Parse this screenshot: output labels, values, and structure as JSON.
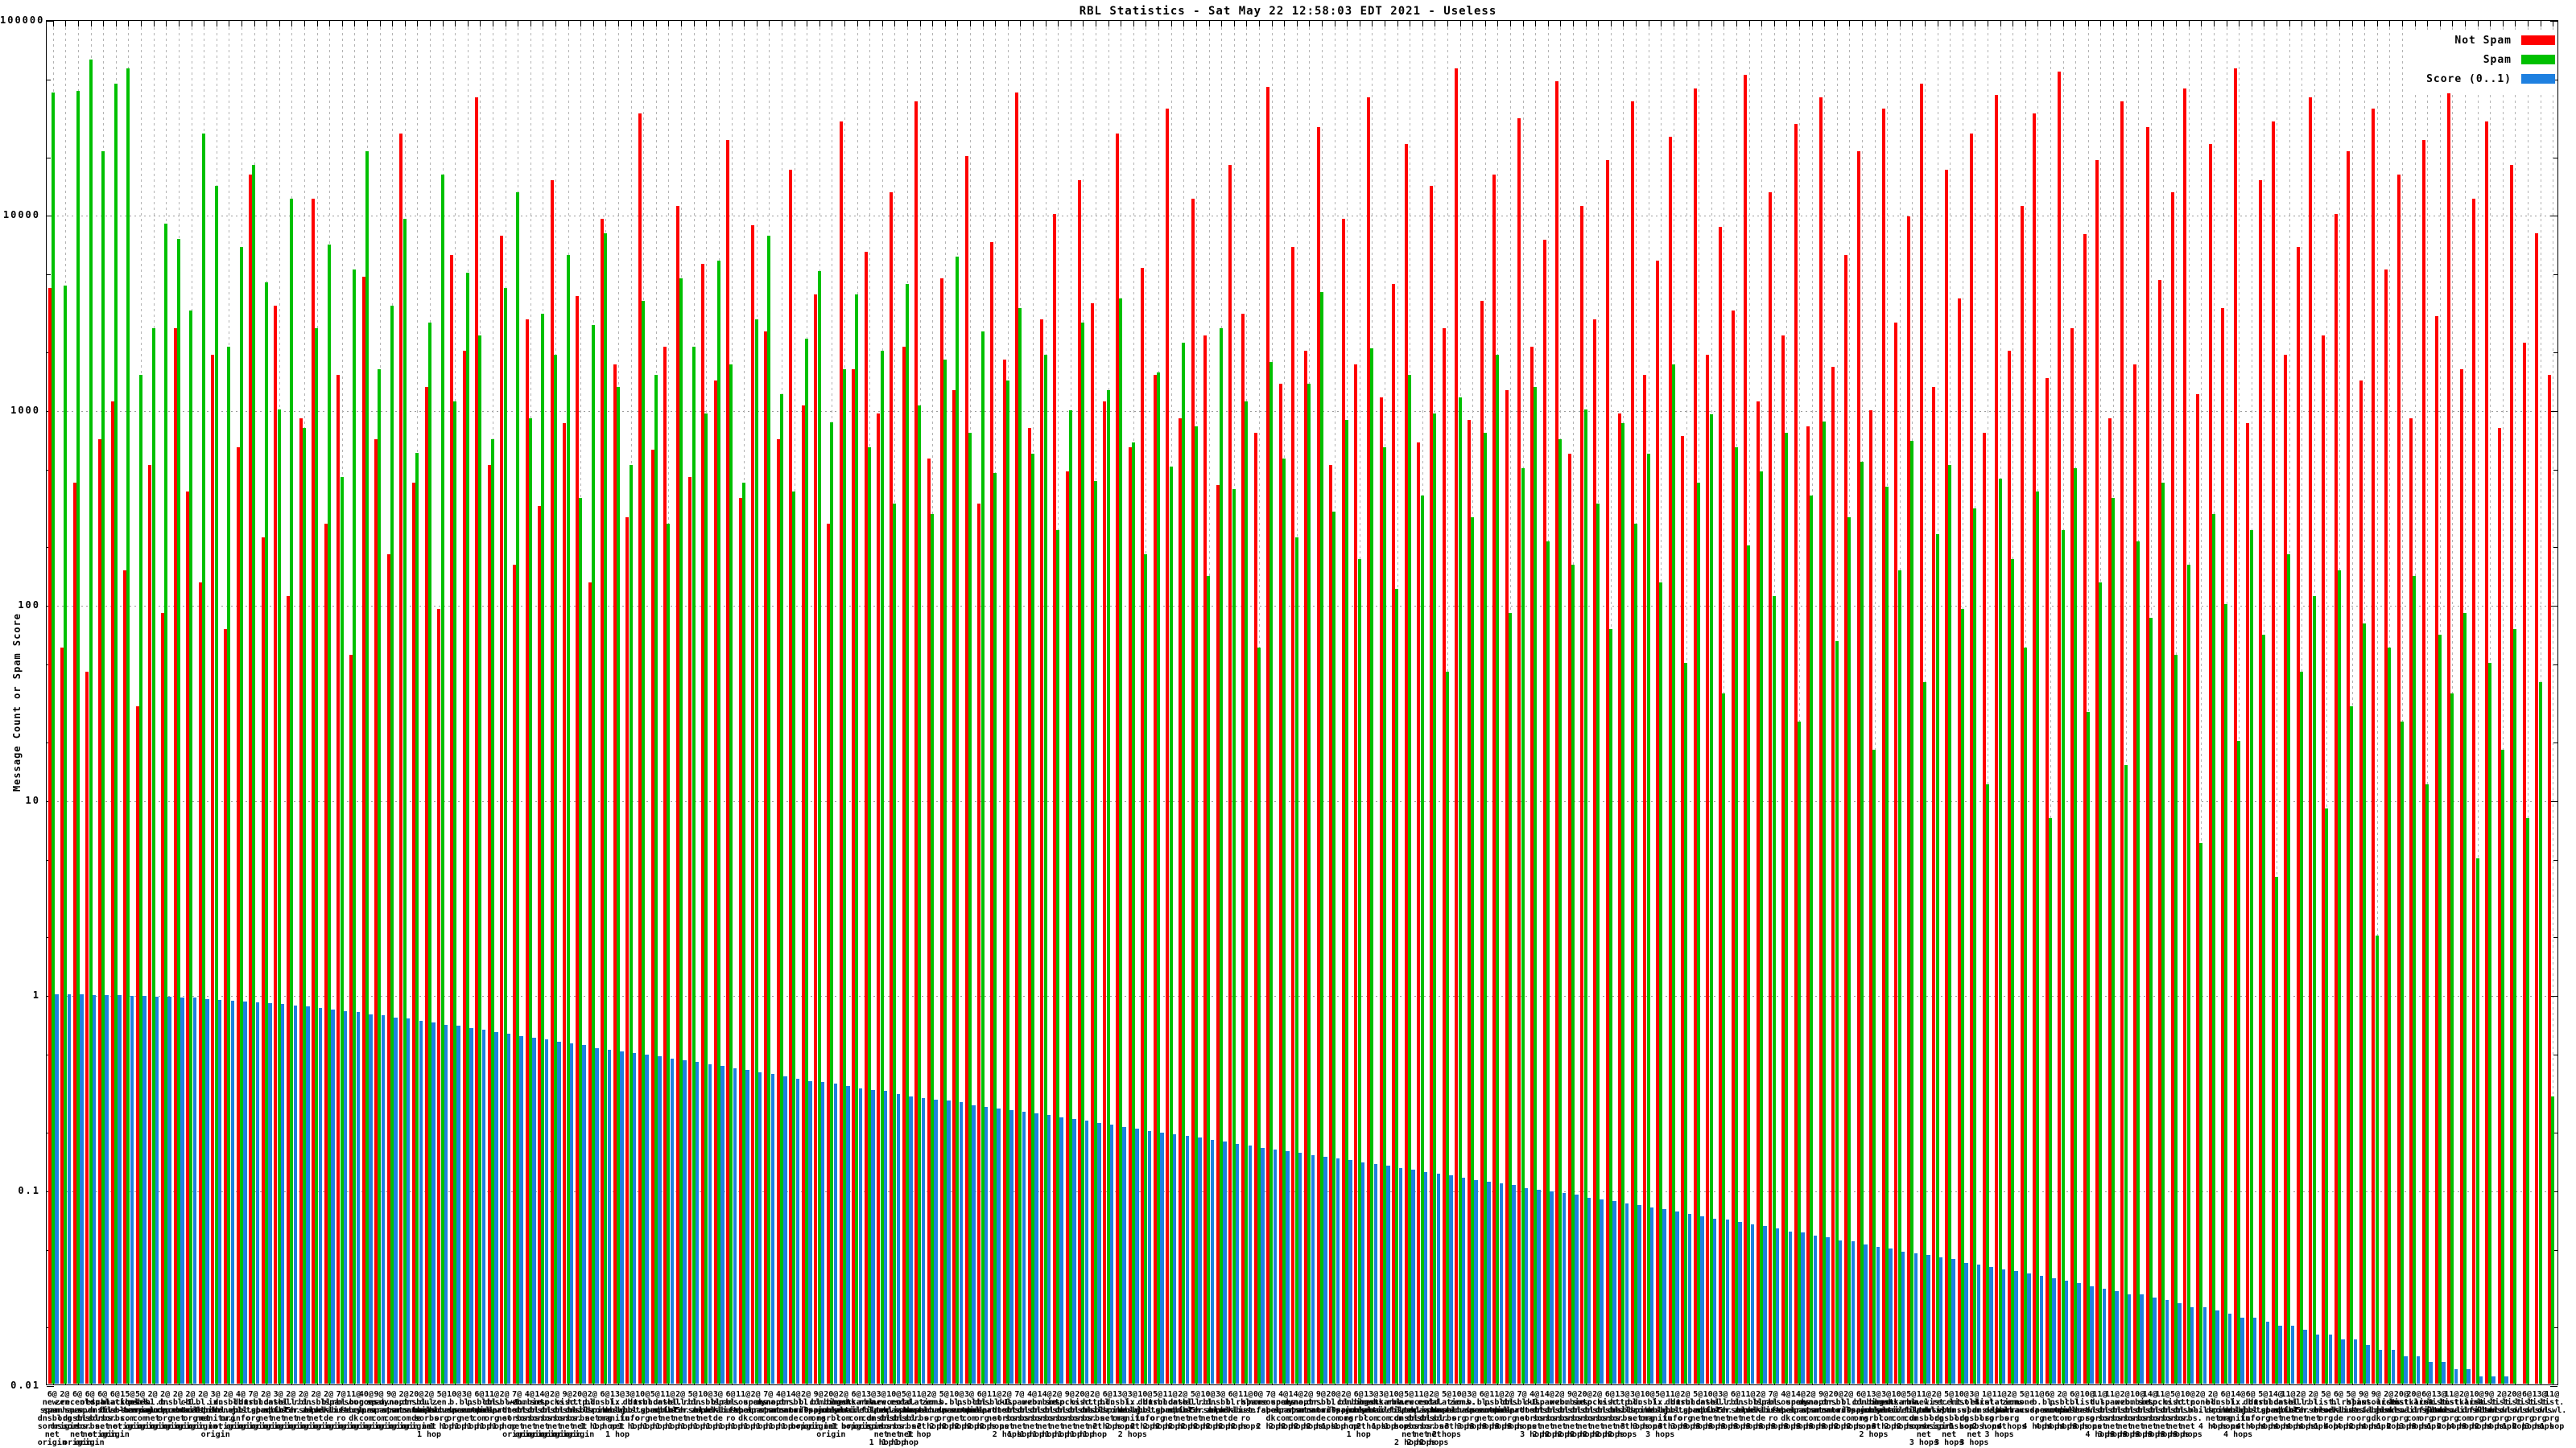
{
  "title": "RBL Statistics - Sat May 22 12:58:03 EDT 2021 - Useless",
  "chart_data": {
    "type": "bar",
    "title": "RBL Statistics - Sat May 22 12:58:03 EDT 2021 - Useless",
    "ylabel": "Message Count or Spam Score",
    "yscale": "log",
    "ylim": [
      0.01,
      100000
    ],
    "grid": true,
    "legend_position": "top-right",
    "yticks": [
      "100000",
      "10000",
      "1000",
      "100",
      "10",
      "1",
      "0.1",
      "0.01"
    ],
    "categories": [
      "6@|new.spam.dnsbl.sorbs.net|origin",
      "2@|zen.spamhaus.org|origin",
      "6@|recent.spam.dnsbl.sorbs.net|origin",
      "6@|old.spam.dnsbl.sorbs.net|origin",
      "6@|spam.dnsbl.sorbs.net|origin",
      "6@|escalations.dnsbl.sorbs.net|origin",
      "15@|blackholes.five-ten-sg.com|origin",
      "5@|psbl.surriel.com|origin",
      "2@|bl.spamcop.net|origin",
      "2@|b.barracudacentral.org|origin",
      "2@|dnsbl-1.uceprotect.net|origin",
      "2@|cbl.abuseat.org|origin",
      "2@|bl.mailspike.net|origin",
      "3@|ix.dnsbl.manitu.net|origin",
      "2@|dnsbl.dronebl.org|origin",
      "4@|db.wpbl.info|origin",
      "7@|dnsbl.justspam.org|origin",
      "2@|truncate.gbudb.net|origin",
      "3@|dnsbl.spfbl.net|origin",
      "2@|all.s5h.net|origin",
      "2@|rbl.interserver.net|origin",
      "2@|dnsbl.zapbl.net|origin",
      "2@|bl.blocklist.de|origin",
      "7@|rbl.abuse.ro|origin",
      "11@|spamsources.fabel.dk|origin",
      "40@|bogons.cymru.com|origin",
      "9@|spam.spamrats.com|origin",
      "9@|dyna.spamrats.com|origin",
      "2@|noptr.spamrats.com|origin",
      "20@|dnsbl.anonmails.de|origin",
      "2@|dul.dnsbl.sorbs.net|1 hop",
      "5@|zen.spamhaus.org|1 hop",
      "10@|b.barracudacentral.org|1 hop",
      "3@|bl.spamcop.net|1 hop",
      "6@|psbl.surriel.com|1 hop",
      "11@|cbl.abuseat.org|1 hop",
      "2@|dnsbl-1.uceprotect.net|1 hop",
      "7@|web.dnsbl.sorbs.net|origin",
      "4@|zombie.dnsbl.sorbs.net|origin",
      "14@|smtp.dnsbl.sorbs.net|origin",
      "2@|socks.dnsbl.sorbs.net|origin",
      "9@|misc.dnsbl.sorbs.net|origin",
      "20@|http.dnsbl.sorbs.net|origin",
      "2@|bl.mailspike.net|1 hop",
      "6@|dnsbl.dronebl.org|1 hop",
      "13@|ix.dnsbl.manitu.net|1 hop",
      "3@|db.wpbl.info|1 hop",
      "10@|dnsbl.justspam.org|1 hop",
      "5@|truncate.gbudb.net|1 hop",
      "11@|dnsbl.spfbl.net|1 hop",
      "2@|all.s5h.net|1 hop",
      "5@|rbl.interserver.net|1 hop",
      "10@|dnsbl.zapbl.net|1 hop",
      "3@|bl.blocklist.de|1 hop",
      "6@|rbl.abuse.ro|1 hop",
      "11@|spamsources.fabel.dk|1 hop",
      "2@|spam.spamrats.com|1 hop",
      "7@|dyna.spamrats.com|1 hop",
      "4@|noptr.spamrats.com|1 hop",
      "14@|dnsbl.anonmails.de|1 hop",
      "2@|bl.nordspam.com|origin",
      "9@|bl.0spam.org|origin",
      "20@|combined.rbl.msrbl.net|origin",
      "2@|bogons.cymru.com|1 hop",
      "6@|hostkarma.junkemailfilter.com|origin",
      "13@|rbl.realtimeblacklist.com|origin",
      "3@|new.spam.dnsbl.sorbs.net|1 hop",
      "10@|recent.spam.dnsbl.sorbs.net|1 hop",
      "5@|old.spam.dnsbl.sorbs.net|1 hop",
      "11@|escalations.dnsbl.sorbs.net|1 hop",
      "2@|zen.spamhaus.org|2 hops",
      "5@|b.barracudacentral.org|2 hops",
      "10@|bl.spamcop.net|2 hops",
      "3@|psbl.surriel.com|2 hops",
      "6@|cbl.abuseat.org|2 hops",
      "11@|dnsbl-1.uceprotect.net|2 hops",
      "2@|dul.dnsbl.sorbs.net|2 hops",
      "7@|spam.dnsbl.sorbs.net|1 hop",
      "4@|web.dnsbl.sorbs.net|1 hop",
      "14@|zombie.dnsbl.sorbs.net|1 hop",
      "2@|smtp.dnsbl.sorbs.net|1 hop",
      "9@|socks.dnsbl.sorbs.net|1 hop",
      "20@|misc.dnsbl.sorbs.net|1 hop",
      "2@|http.dnsbl.sorbs.net|1 hop",
      "6@|bl.mailspike.net|2 hops",
      "13@|dnsbl.dronebl.org|2 hops",
      "3@|ix.dnsbl.manitu.net|2 hops",
      "10@|db.wpbl.info|2 hops",
      "5@|dnsbl.justspam.org|2 hops",
      "11@|truncate.gbudb.net|2 hops",
      "2@|dnsbl.spfbl.net|2 hops",
      "5@|all.s5h.net|2 hops",
      "10@|rbl.interserver.net|2 hops",
      "3@|dnsbl.zapbl.net|2 hops",
      "6@|bl.blocklist.de|2 hops",
      "11@|rbl.abuse.ro|2 hops",
      "0@|none|",
      "7@|spamsources.fabel.dk|2 hops",
      "4@|spam.spamrats.com|2 hops",
      "14@|dyna.spamrats.com|2 hops",
      "2@|noptr.spamrats.com|2 hops",
      "9@|dnsbl.anonmails.de|2 hops",
      "20@|bl.nordspam.com|1 hop",
      "2@|bl.0spam.org|1 hop",
      "6@|combined.rbl.msrbl.net|1 hop",
      "13@|bogons.cymru.com|2 hops",
      "3@|hostkarma.junkemailfilter.com|1 hop",
      "10@|rbl.realtimeblacklist.com|1 hop",
      "5@|new.spam.dnsbl.sorbs.net|2 hops",
      "11@|recent.spam.dnsbl.sorbs.net|2 hops",
      "2@|old.spam.dnsbl.sorbs.net|2 hops",
      "5@|escalations.dnsbl.sorbs.net|2 hops",
      "10@|zen.spamhaus.org|3 hops",
      "3@|b.barracudacentral.org|3 hops",
      "6@|bl.spamcop.net|3 hops",
      "11@|psbl.surriel.com|3 hops",
      "2@|cbl.abuseat.org|3 hops",
      "7@|dnsbl-1.uceprotect.net|3 hops",
      "4@|dul.dnsbl.sorbs.net|3 hops",
      "14@|spam.dnsbl.sorbs.net|2 hops",
      "2@|web.dnsbl.sorbs.net|2 hops",
      "9@|zombie.dnsbl.sorbs.net|2 hops",
      "20@|smtp.dnsbl.sorbs.net|2 hops",
      "2@|socks.dnsbl.sorbs.net|2 hops",
      "6@|misc.dnsbl.sorbs.net|2 hops",
      "13@|http.dnsbl.sorbs.net|2 hops",
      "3@|bl.mailspike.net|3 hops",
      "10@|dnsbl.dronebl.org|3 hops",
      "5@|ix.dnsbl.manitu.net|3 hops",
      "11@|db.wpbl.info|3 hops",
      "2@|dnsbl.justspam.org|3 hops",
      "5@|truncate.gbudb.net|3 hops",
      "10@|dnsbl.spfbl.net|3 hops",
      "3@|all.s5h.net|3 hops",
      "6@|rbl.interserver.net|3 hops",
      "11@|dnsbl.zapbl.net|3 hops",
      "2@|bl.blocklist.de|3 hops",
      "7@|rbl.abuse.ro|3 hops",
      "4@|spamsources.fabel.dk|3 hops",
      "14@|spam.spamrats.com|3 hops",
      "2@|dyna.spamrats.com|3 hops",
      "9@|noptr.spamrats.com|3 hops",
      "20@|dnsbl.anonmails.de|3 hops",
      "2@|bl.nordspam.com|2 hops",
      "6@|bl.0spam.org|2 hops",
      "13@|combined.rbl.msrbl.net|2 hops",
      "3@|bogons.cymru.com|3 hops",
      "10@|hostkarma.junkemailfilter.com|2 hops",
      "5@|rbl.realtimeblacklist.com|2 hops",
      "11@|new.spam.dnsbl.sorbs.net|3 hops",
      "2@|list.dnswl.org|origin",
      "5@|recent.spam.dnsbl.sorbs.net|3 hops",
      "10@|list.dnswl.org|1 hop",
      "3@|old.spam.dnsbl.sorbs.net|3 hops",
      "1@|list.dnswl.org|2 hops",
      "11@|escalations.dnsbl.sorbs.net|3 hops",
      "2@|zen.spamhaus.org|4 hops",
      "5@|none|",
      "11@|b.barracudacentral.org|4 hops",
      "6@|bl.spamcop.net|4 hops",
      "2@|psbl.surriel.com|4 hops",
      "6@|cbl.abuseat.org|4 hops",
      "10@|list.dnswl.org|3 hops",
      "11@|dul.dnsbl.sorbs.net|4 hops",
      "11@|spam.dnsbl.sorbs.net|3 hops",
      "2@|web.dnsbl.sorbs.net|3 hops",
      "10@|zombie.dnsbl.sorbs.net|3 hops",
      "14@|smtp.dnsbl.sorbs.net|3 hops",
      "11@|socks.dnsbl.sorbs.net|3 hops",
      "5@|misc.dnsbl.sorbs.net|3 hops",
      "10@|http.dnsbl.sorbs.net|3 hops",
      "2@|none|",
      "2@|bl.mailspike.net|4 hops",
      "6@|dnsbl.dronebl.org|4 hops",
      "14@|ix.dnsbl.manitu.net|4 hops",
      "6@|db.wpbl.info|4 hops",
      "5@|dnsbl.justspam.org|4 hops",
      "14@|truncate.gbudb.net|4 hops",
      "11@|dnsbl.spfbl.net|4 hops",
      "2@|all.s5h.net|4 hops",
      "2@|rbl.interserver.net|4 hops",
      "5@|list.dnswl.org|1 hop",
      "6@|bl.blocklist.de|4 hops",
      "5@|rbl.abuse.ro|4 hops",
      "9@|list.dnswl.org|2 hops",
      "9@|spamsources.fabel.dk|4 hops",
      "2@|list.dnswl.org|1 hop",
      "20@|list.dnswl.org|2 hops",
      "20@|hostkarma.junkemailfilter.com|3 hops",
      "6@|list.dnswl.org|3 hops",
      "13@|list.dnswl.org|1 hop",
      "11@|list.dnswl.org|2 hops",
      "2@|hostkarma.junkemailfilter.com|4 hops",
      "10@|list.dnswl.org|3 hops",
      "9@|list.dnswl.org|2 hops",
      "2@|list.dnswl.org|4 hops",
      "20@|list.dnswl.org|1 hop",
      "6@|list.dnswl.org|2 hops",
      "13@|list.dnswl.org|3 hops",
      "11@|list.dnswl.org|1 hop"
    ],
    "series": [
      {
        "name": "Not Spam",
        "color": "#ff0000",
        "values": [
          4200,
          60,
          420,
          45,
          700,
          1100,
          150,
          30,
          520,
          90,
          2600,
          380,
          130,
          1900,
          75,
          640,
          16000,
          220,
          3400,
          110,
          900,
          12000,
          260,
          1500,
          55,
          4800,
          700,
          180,
          26000,
          420,
          1300,
          95,
          6200,
          2000,
          40000,
          520,
          7800,
          160,
          2900,
          320,
          15000,
          850,
          3800,
          130,
          9500,
          1700,
          280,
          33000,
          620,
          2100,
          11000,
          450,
          5600,
          1400,
          24000,
          350,
          8800,
          2500,
          700,
          17000,
          1050,
          3900,
          260,
          30000,
          1600,
          6400,
          950,
          13000,
          2100,
          38000,
          560,
          4700,
          1250,
          20000,
          330,
          7200,
          1800,
          42000,
          800,
          2900,
          10000,
          480,
          15000,
          3500,
          1100,
          26000,
          640,
          5300,
          1500,
          35000,
          900,
          12000,
          2400,
          410,
          18000,
          3100,
          760,
          45000,
          1350,
          6800,
          2000,
          28000,
          520,
          9500,
          1700,
          40000,
          1150,
          4400,
          23000,
          680,
          14000,
          2600,
          56000,
          880,
          3600,
          16000,
          1250,
          31000,
          2100,
          7400,
          48000,
          590,
          11000,
          2900,
          19000,
          950,
          38000,
          1500,
          5800,
          25000,
          730,
          44000,
          1900,
          8600,
          3200,
          52000,
          1100,
          13000,
          2400,
          29000,
          820,
          40000,
          1650,
          6200,
          21000,
          990,
          35000,
          2800,
          9800,
          47000,
          1300,
          17000,
          3700,
          26000,
          760,
          41000,
          2000,
          11000,
          33000,
          1450,
          54000,
          2600,
          7900,
          19000,
          900,
          38000,
          1700,
          28000,
          4600,
          13000,
          44000,
          1200,
          23000,
          3300,
          56000,
          850,
          15000,
          30000,
          1900,
          6800,
          40000,
          2400,
          10000,
          21000,
          1400,
          35000,
          5200,
          16000,
          900,
          24000,
          3000,
          45000,
          1600,
          12000,
          30000,
          800,
          18000,
          2200,
          8000,
          1500
        ]
      },
      {
        "name": "Spam",
        "color": "#00c000",
        "values": [
          42000,
          4300,
          43000,
          62000,
          21000,
          47000,
          56000,
          1500,
          2600,
          9000,
          7500,
          3200,
          26000,
          14000,
          2100,
          6800,
          18000,
          4500,
          1000,
          12000,
          800,
          2600,
          7000,
          450,
          5200,
          21000,
          1600,
          3400,
          9500,
          600,
          2800,
          16000,
          1100,
          5000,
          2400,
          700,
          4200,
          13000,
          900,
          3100,
          1900,
          6200,
          350,
          2700,
          8000,
          1300,
          520,
          3600,
          1500,
          260,
          4700,
          2100,
          950,
          5800,
          1700,
          420,
          2900,
          7800,
          1200,
          380,
          2300,
          5100,
          860,
          1600,
          3900,
          640,
          2000,
          330,
          4400,
          1050,
          290,
          1800,
          6100,
          760,
          2500,
          470,
          1400,
          3300,
          590,
          1900,
          240,
          990,
          2800,
          430,
          1250,
          3700,
          680,
          180,
          1550,
          510,
          2200,
          820,
          140,
          2600,
          390,
          1100,
          60,
          1750,
          560,
          220,
          1350,
          4000,
          300,
          880,
          170,
          2050,
          640,
          120,
          1500,
          360,
          950,
          45,
          1150,
          280,
          760,
          1900,
          90,
          500,
          1300,
          210,
          700,
          160,
          1000,
          330,
          75,
          850,
          260,
          590,
          130,
          1700,
          50,
          420,
          940,
          35,
          640,
          200,
          480,
          110,
          760,
          25,
          360,
          870,
          65,
          280,
          540,
          18,
          400,
          150,
          690,
          40,
          230,
          520,
          95,
          310,
          12,
          440,
          170,
          60,
          380,
          8,
          240,
          500,
          28,
          130,
          350,
          15,
          210,
          85,
          420,
          55,
          160,
          6,
          290,
          100,
          20,
          240,
          70,
          4,
          180,
          45,
          110,
          9,
          150,
          30,
          80,
          2,
          60,
          25,
          140,
          12,
          70,
          35,
          90,
          5,
          50,
          18,
          75,
          8,
          40,
          0.3
        ]
      },
      {
        "name": "Score (0..1)",
        "color": "#1e80e0",
        "values": [
          1.0,
          1.0,
          1.0,
          0.99,
          0.99,
          0.99,
          0.98,
          0.98,
          0.97,
          0.97,
          0.96,
          0.96,
          0.95,
          0.94,
          0.93,
          0.92,
          0.91,
          0.9,
          0.89,
          0.88,
          0.87,
          0.85,
          0.84,
          0.82,
          0.81,
          0.79,
          0.78,
          0.76,
          0.75,
          0.73,
          0.72,
          0.7,
          0.69,
          0.67,
          0.66,
          0.64,
          0.63,
          0.61,
          0.6,
          0.59,
          0.57,
          0.56,
          0.55,
          0.53,
          0.52,
          0.51,
          0.5,
          0.49,
          0.48,
          0.47,
          0.46,
          0.45,
          0.44,
          0.43,
          0.42,
          0.41,
          0.4,
          0.39,
          0.38,
          0.37,
          0.36,
          0.355,
          0.35,
          0.34,
          0.33,
          0.325,
          0.32,
          0.31,
          0.3,
          0.295,
          0.29,
          0.285,
          0.28,
          0.27,
          0.265,
          0.26,
          0.255,
          0.25,
          0.245,
          0.24,
          0.235,
          0.23,
          0.225,
          0.22,
          0.215,
          0.21,
          0.205,
          0.2,
          0.196,
          0.192,
          0.188,
          0.184,
          0.18,
          0.176,
          0.172,
          0.168,
          0.164,
          0.16,
          0.157,
          0.154,
          0.15,
          0.147,
          0.144,
          0.141,
          0.138,
          0.135,
          0.132,
          0.129,
          0.126,
          0.123,
          0.12,
          0.118,
          0.115,
          0.112,
          0.11,
          0.107,
          0.105,
          0.102,
          0.1,
          0.098,
          0.096,
          0.094,
          0.091,
          0.089,
          0.087,
          0.085,
          0.083,
          0.081,
          0.079,
          0.077,
          0.075,
          0.073,
          0.071,
          0.07,
          0.068,
          0.066,
          0.065,
          0.063,
          0.061,
          0.06,
          0.058,
          0.057,
          0.055,
          0.054,
          0.052,
          0.051,
          0.05,
          0.048,
          0.047,
          0.046,
          0.045,
          0.044,
          0.042,
          0.041,
          0.04,
          0.039,
          0.038,
          0.037,
          0.036,
          0.035,
          0.034,
          0.033,
          0.032,
          0.031,
          0.03,
          0.029,
          0.029,
          0.028,
          0.027,
          0.026,
          0.025,
          0.025,
          0.024,
          0.023,
          0.022,
          0.022,
          0.021,
          0.02,
          0.02,
          0.019,
          0.018,
          0.018,
          0.017,
          0.017,
          0.016,
          0.015,
          0.015,
          0.014,
          0.014,
          0.013,
          0.013,
          0.012,
          0.012,
          0.011,
          0.011,
          0.011,
          0.01,
          0.01,
          0.01,
          0.01
        ]
      }
    ]
  }
}
